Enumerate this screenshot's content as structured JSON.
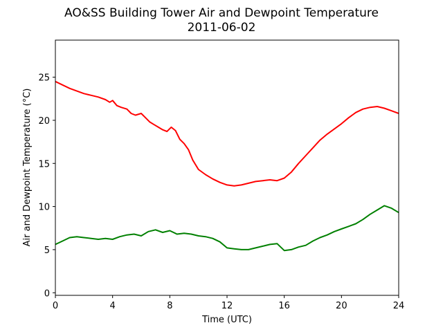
{
  "chart_data": {
    "type": "line",
    "title": "AO&SS Building Tower Air and Dewpoint Temperature",
    "subtitle": "2011-06-02",
    "xlabel": "Time (UTC)",
    "ylabel": "Air and Dewpoint Temperature (°C)",
    "xlim": [
      0,
      24
    ],
    "ylim": [
      -0.3,
      29.3
    ],
    "x_ticks": [
      0,
      4,
      8,
      12,
      16,
      20,
      24
    ],
    "y_ticks": [
      0,
      5,
      10,
      15,
      20,
      25
    ],
    "grid": false,
    "legend": "none",
    "series": [
      {
        "color": "#ff0000",
        "x": [
          0,
          0.5,
          1,
          1.5,
          2,
          2.5,
          3,
          3.5,
          3.8,
          4,
          4.3,
          4.6,
          5,
          5.3,
          5.6,
          6,
          6.3,
          6.6,
          6.9,
          7.2,
          7.5,
          7.8,
          8.1,
          8.4,
          8.7,
          9,
          9.3,
          9.6,
          10,
          10.5,
          11,
          11.5,
          12,
          12.5,
          13,
          13.5,
          14,
          14.5,
          15,
          15.5,
          16,
          16.5,
          17,
          17.5,
          18,
          18.5,
          19,
          19.5,
          20,
          20.5,
          21,
          21.5,
          22,
          22.5,
          23,
          23.5,
          24
        ],
        "y": [
          24.5,
          24.1,
          23.7,
          23.4,
          23.1,
          22.9,
          22.7,
          22.4,
          22.1,
          22.3,
          21.7,
          21.5,
          21.3,
          20.8,
          20.6,
          20.8,
          20.3,
          19.8,
          19.5,
          19.2,
          18.9,
          18.7,
          19.2,
          18.8,
          17.8,
          17.3,
          16.6,
          15.4,
          14.3,
          13.7,
          13.2,
          12.8,
          12.5,
          12.4,
          12.5,
          12.7,
          12.9,
          13.0,
          13.1,
          13.0,
          13.3,
          14.0,
          15.0,
          15.9,
          16.8,
          17.7,
          18.4,
          19.0,
          19.6,
          20.3,
          20.9,
          21.3,
          21.5,
          21.6,
          21.4,
          21.1,
          20.8
        ]
      },
      {
        "color": "#008000",
        "x": [
          0,
          0.5,
          1,
          1.5,
          2,
          2.5,
          3,
          3.5,
          4,
          4.5,
          5,
          5.5,
          6,
          6.5,
          7,
          7.5,
          8,
          8.5,
          9,
          9.5,
          10,
          10.5,
          11,
          11.5,
          12,
          12.5,
          13,
          13.5,
          14,
          14.5,
          15,
          15.5,
          16,
          16.5,
          17,
          17.5,
          18,
          18.5,
          19,
          19.5,
          20,
          20.5,
          21,
          21.5,
          22,
          22.5,
          23,
          23.5,
          24
        ],
        "y": [
          5.6,
          6.0,
          6.4,
          6.5,
          6.4,
          6.3,
          6.2,
          6.3,
          6.2,
          6.5,
          6.7,
          6.8,
          6.6,
          7.1,
          7.3,
          7.0,
          7.2,
          6.8,
          6.9,
          6.8,
          6.6,
          6.5,
          6.3,
          5.9,
          5.2,
          5.1,
          5.0,
          5.0,
          5.2,
          5.4,
          5.6,
          5.7,
          4.9,
          5.0,
          5.3,
          5.5,
          6.0,
          6.4,
          6.7,
          7.1,
          7.4,
          7.7,
          8.0,
          8.5,
          9.1,
          9.6,
          10.1,
          9.8,
          9.3
        ]
      }
    ]
  }
}
